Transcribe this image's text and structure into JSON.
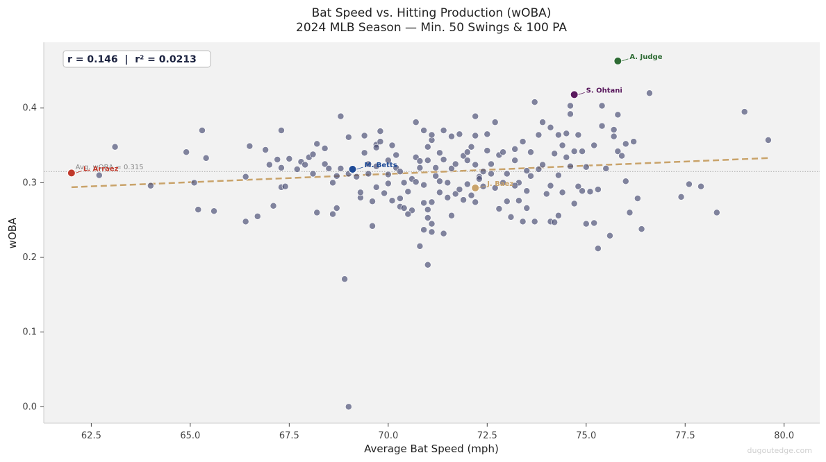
{
  "chart_data": {
    "type": "scatter",
    "title": "Bat Speed vs. Hitting Production (wOBA)",
    "subtitle": "2024 MLB Season — Min. 50 Swings & 100 PA",
    "xlabel": "Average Bat Speed (mph)",
    "ylabel": "wOBA",
    "xlim": [
      61.3,
      80.9
    ],
    "ylim": [
      -0.022,
      0.488
    ],
    "xticks": [
      "62.5",
      "65.0",
      "67.5",
      "70.0",
      "72.5",
      "75.0",
      "77.5",
      "80.0"
    ],
    "yticks": [
      "0.0",
      "0.1",
      "0.2",
      "0.3",
      "0.4"
    ],
    "grid": false,
    "stats_box": "r = 0.146  |  r² = 0.0213",
    "reference_line": {
      "label": "Avg. wOBA = 0.315",
      "y": 0.315
    },
    "trend_line": {
      "x": [
        62.0,
        79.6
      ],
      "y": [
        0.294,
        0.333
      ]
    },
    "colors": {
      "points": "#4a4e74",
      "trend": "#c9a36a",
      "background": "#f2f2f2",
      "judge": "#2e6b34",
      "ohtani": "#5a1a5e",
      "betts": "#1e4a96",
      "baez": "#c9a36a",
      "arraez": "#c0392b"
    },
    "highlighted": [
      {
        "name": "A. Judge",
        "x": 75.8,
        "y": 0.463,
        "color": "#2e6b34"
      },
      {
        "name": "S. Ohtani",
        "x": 74.7,
        "y": 0.418,
        "color": "#5a1a5e"
      },
      {
        "name": "M. Betts",
        "x": 69.1,
        "y": 0.318,
        "color": "#1e4a96"
      },
      {
        "name": "J. Baez",
        "x": 72.2,
        "y": 0.293,
        "color": "#c9a36a"
      },
      {
        "name": "L. Arraez",
        "x": 62.0,
        "y": 0.313,
        "color": "#c0392b"
      }
    ],
    "points": [
      [
        63.1,
        0.348
      ],
      [
        62.7,
        0.31
      ],
      [
        64.0,
        0.296
      ],
      [
        64.9,
        0.341
      ],
      [
        65.1,
        0.3
      ],
      [
        65.2,
        0.264
      ],
      [
        65.3,
        0.37
      ],
      [
        65.4,
        0.333
      ],
      [
        65.6,
        0.262
      ],
      [
        66.4,
        0.248
      ],
      [
        66.4,
        0.308
      ],
      [
        66.5,
        0.349
      ],
      [
        66.7,
        0.255
      ],
      [
        66.9,
        0.344
      ],
      [
        67.0,
        0.324
      ],
      [
        67.1,
        0.269
      ],
      [
        67.2,
        0.331
      ],
      [
        67.3,
        0.294
      ],
      [
        67.3,
        0.37
      ],
      [
        67.3,
        0.32
      ],
      [
        67.4,
        0.295
      ],
      [
        67.5,
        0.332
      ],
      [
        67.7,
        0.318
      ],
      [
        67.8,
        0.328
      ],
      [
        67.9,
        0.324
      ],
      [
        68.0,
        0.334
      ],
      [
        68.1,
        0.338
      ],
      [
        68.1,
        0.312
      ],
      [
        68.2,
        0.352
      ],
      [
        68.2,
        0.26
      ],
      [
        68.4,
        0.346
      ],
      [
        68.4,
        0.325
      ],
      [
        68.5,
        0.319
      ],
      [
        68.6,
        0.3
      ],
      [
        68.6,
        0.258
      ],
      [
        68.7,
        0.309
      ],
      [
        68.7,
        0.266
      ],
      [
        68.8,
        0.389
      ],
      [
        68.8,
        0.319
      ],
      [
        69.0,
        0.361
      ],
      [
        69.0,
        0.312
      ],
      [
        69.1,
        0.316
      ],
      [
        69.2,
        0.308
      ],
      [
        69.3,
        0.28
      ],
      [
        69.3,
        0.287
      ],
      [
        69.4,
        0.363
      ],
      [
        69.4,
        0.34
      ],
      [
        69.5,
        0.312
      ],
      [
        69.5,
        0.325
      ],
      [
        69.6,
        0.275
      ],
      [
        69.6,
        0.242
      ],
      [
        69.7,
        0.294
      ],
      [
        69.7,
        0.351
      ],
      [
        69.7,
        0.347
      ],
      [
        69.8,
        0.369
      ],
      [
        69.8,
        0.355
      ],
      [
        69.9,
        0.286
      ],
      [
        70.0,
        0.311
      ],
      [
        70.0,
        0.33
      ],
      [
        70.0,
        0.299
      ],
      [
        70.1,
        0.35
      ],
      [
        70.1,
        0.276
      ],
      [
        70.2,
        0.337
      ],
      [
        70.2,
        0.32
      ],
      [
        70.3,
        0.279
      ],
      [
        70.3,
        0.268
      ],
      [
        70.3,
        0.315
      ],
      [
        70.4,
        0.3
      ],
      [
        70.5,
        0.288
      ],
      [
        70.6,
        0.263
      ],
      [
        70.6,
        0.305
      ],
      [
        70.7,
        0.334
      ],
      [
        70.7,
        0.381
      ],
      [
        70.7,
        0.301
      ],
      [
        70.8,
        0.32
      ],
      [
        70.8,
        0.329
      ],
      [
        70.9,
        0.297
      ],
      [
        70.9,
        0.37
      ],
      [
        70.9,
        0.273
      ],
      [
        71.0,
        0.264
      ],
      [
        71.0,
        0.253
      ],
      [
        71.0,
        0.348
      ],
      [
        71.0,
        0.33
      ],
      [
        71.1,
        0.357
      ],
      [
        71.1,
        0.364
      ],
      [
        71.1,
        0.245
      ],
      [
        71.1,
        0.234
      ],
      [
        71.2,
        0.309
      ],
      [
        71.2,
        0.32
      ],
      [
        71.3,
        0.302
      ],
      [
        71.3,
        0.34
      ],
      [
        71.3,
        0.287
      ],
      [
        71.4,
        0.232
      ],
      [
        71.4,
        0.37
      ],
      [
        71.4,
        0.331
      ],
      [
        71.5,
        0.28
      ],
      [
        71.5,
        0.3
      ],
      [
        71.6,
        0.362
      ],
      [
        71.6,
        0.319
      ],
      [
        71.7,
        0.325
      ],
      [
        71.7,
        0.285
      ],
      [
        71.8,
        0.365
      ],
      [
        71.8,
        0.291
      ],
      [
        71.9,
        0.336
      ],
      [
        71.9,
        0.277
      ],
      [
        72.0,
        0.298
      ],
      [
        72.0,
        0.341
      ],
      [
        72.1,
        0.348
      ],
      [
        72.1,
        0.283
      ],
      [
        72.2,
        0.389
      ],
      [
        72.2,
        0.363
      ],
      [
        72.2,
        0.324
      ],
      [
        72.3,
        0.308
      ],
      [
        72.4,
        0.315
      ],
      [
        72.4,
        0.295
      ],
      [
        72.5,
        0.365
      ],
      [
        72.5,
        0.343
      ],
      [
        72.6,
        0.325
      ],
      [
        72.6,
        0.312
      ],
      [
        72.7,
        0.381
      ],
      [
        72.7,
        0.293
      ],
      [
        72.8,
        0.265
      ],
      [
        72.8,
        0.337
      ],
      [
        72.9,
        0.341
      ],
      [
        72.9,
        0.3
      ],
      [
        73.0,
        0.275
      ],
      [
        73.0,
        0.312
      ],
      [
        73.1,
        0.254
      ],
      [
        73.2,
        0.33
      ],
      [
        73.2,
        0.345
      ],
      [
        73.3,
        0.3
      ],
      [
        73.3,
        0.276
      ],
      [
        73.4,
        0.355
      ],
      [
        73.4,
        0.248
      ],
      [
        73.5,
        0.316
      ],
      [
        73.5,
        0.289
      ],
      [
        73.6,
        0.341
      ],
      [
        73.6,
        0.309
      ],
      [
        73.7,
        0.408
      ],
      [
        73.7,
        0.248
      ],
      [
        73.8,
        0.364
      ],
      [
        73.8,
        0.318
      ],
      [
        73.9,
        0.381
      ],
      [
        73.9,
        0.324
      ],
      [
        74.0,
        0.285
      ],
      [
        74.1,
        0.374
      ],
      [
        74.1,
        0.248
      ],
      [
        74.2,
        0.339
      ],
      [
        74.2,
        0.247
      ],
      [
        74.3,
        0.364
      ],
      [
        74.3,
        0.31
      ],
      [
        74.4,
        0.35
      ],
      [
        74.4,
        0.287
      ],
      [
        74.5,
        0.334
      ],
      [
        74.5,
        0.366
      ],
      [
        74.6,
        0.322
      ],
      [
        74.6,
        0.392
      ],
      [
        74.6,
        0.403
      ],
      [
        74.7,
        0.272
      ],
      [
        74.7,
        0.342
      ],
      [
        74.8,
        0.364
      ],
      [
        74.8,
        0.295
      ],
      [
        74.9,
        0.342
      ],
      [
        74.9,
        0.289
      ],
      [
        75.0,
        0.321
      ],
      [
        75.0,
        0.245
      ],
      [
        75.1,
        0.288
      ],
      [
        75.2,
        0.246
      ],
      [
        75.2,
        0.35
      ],
      [
        75.3,
        0.291
      ],
      [
        75.3,
        0.212
      ],
      [
        75.4,
        0.376
      ],
      [
        75.4,
        0.403
      ],
      [
        75.5,
        0.319
      ],
      [
        75.6,
        0.229
      ],
      [
        75.7,
        0.371
      ],
      [
        75.7,
        0.362
      ],
      [
        75.8,
        0.391
      ],
      [
        75.8,
        0.342
      ],
      [
        75.9,
        0.336
      ],
      [
        76.0,
        0.302
      ],
      [
        76.0,
        0.352
      ],
      [
        76.1,
        0.26
      ],
      [
        76.2,
        0.355
      ],
      [
        76.3,
        0.279
      ],
      [
        76.4,
        0.238
      ],
      [
        76.6,
        0.42
      ],
      [
        77.4,
        0.281
      ],
      [
        77.6,
        0.298
      ],
      [
        77.9,
        0.295
      ],
      [
        78.3,
        0.26
      ],
      [
        79.0,
        0.395
      ],
      [
        79.6,
        0.357
      ],
      [
        68.9,
        0.171
      ],
      [
        69.0,
        0.0
      ],
      [
        71.0,
        0.19
      ],
      [
        70.8,
        0.215
      ],
      [
        70.9,
        0.237
      ],
      [
        72.2,
        0.274
      ],
      [
        71.6,
        0.256
      ],
      [
        72.3,
        0.305
      ],
      [
        73.2,
        0.296
      ],
      [
        74.1,
        0.296
      ],
      [
        70.4,
        0.266
      ],
      [
        71.1,
        0.274
      ],
      [
        73.5,
        0.266
      ],
      [
        70.5,
        0.258
      ],
      [
        74.3,
        0.256
      ],
      [
        69.7,
        0.322
      ],
      [
        72.0,
        0.33
      ]
    ]
  },
  "watermark": "dugoutedge.com"
}
